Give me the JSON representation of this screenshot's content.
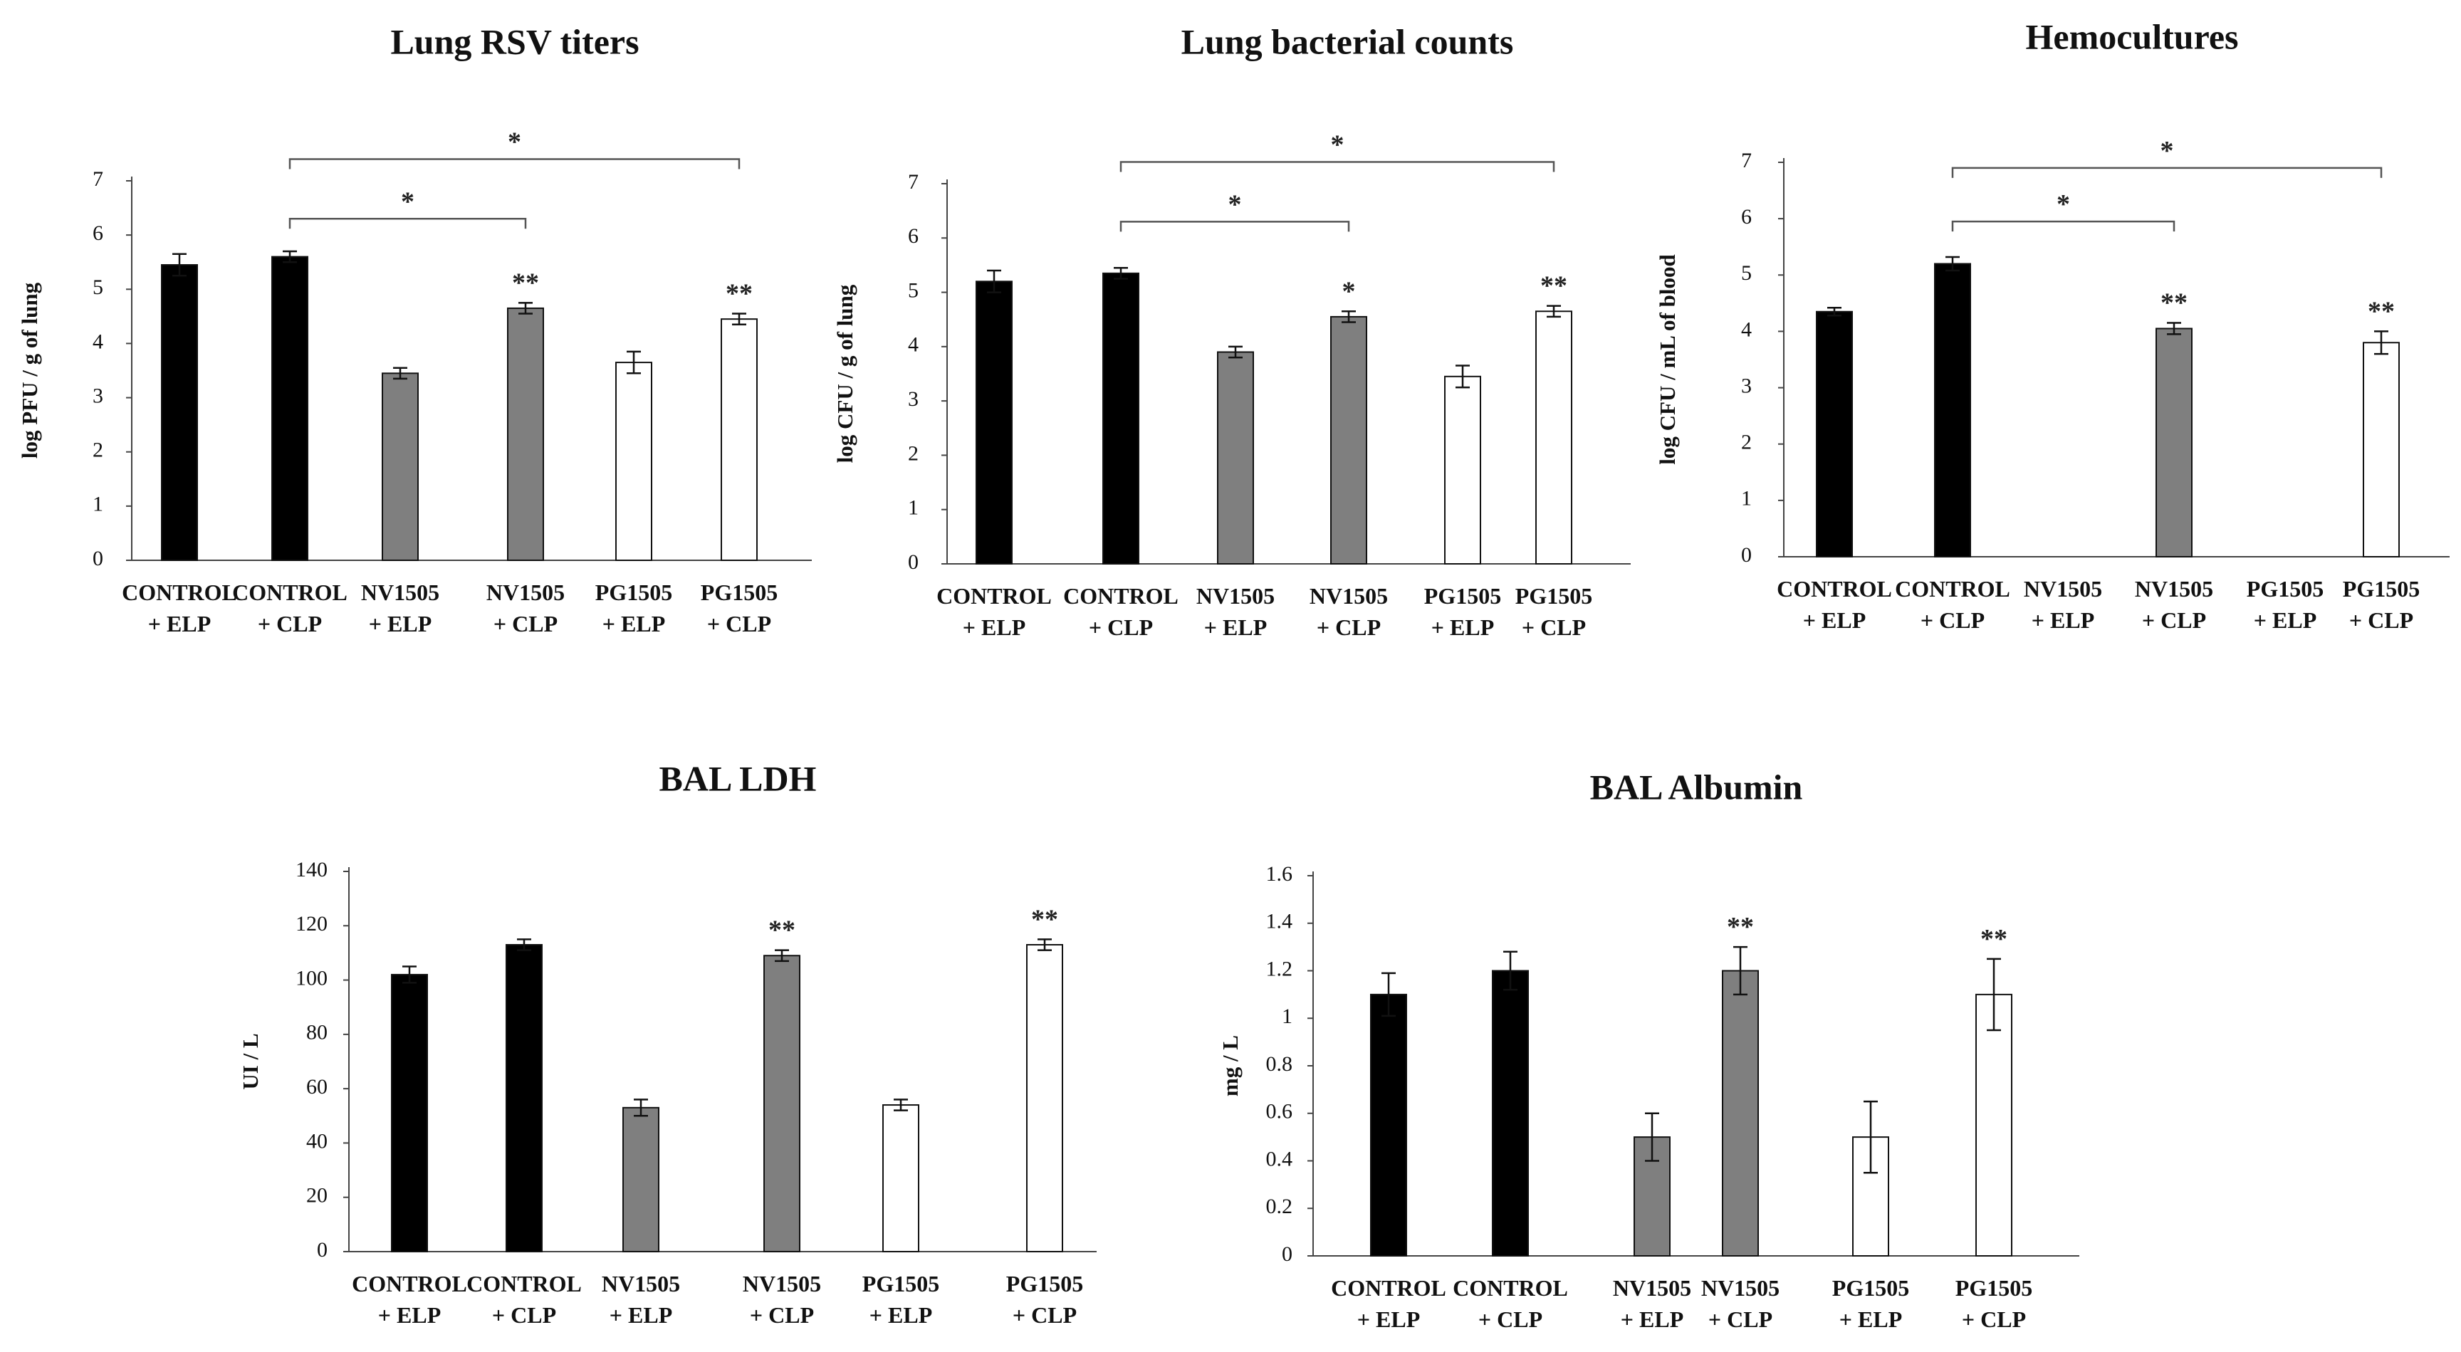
{
  "colors": {
    "black": "#000000",
    "gray": "#7f7f7f",
    "white": "#ffffff"
  },
  "chart_data": [
    {
      "type": "bar",
      "title": "Lung RSV titers",
      "ylabel": "log PFU / g of lung",
      "ylim": [
        0,
        7
      ],
      "yticks": [
        "0",
        "1",
        "2",
        "3",
        "4",
        "5",
        "6",
        "7"
      ],
      "categories": [
        [
          "CONTROL",
          "+ ELP"
        ],
        [
          "CONTROL",
          "+ CLP"
        ],
        [
          "NV1505",
          "+ ELP"
        ],
        [
          "NV1505",
          "+ CLP"
        ],
        [
          "PG1505",
          "+ ELP"
        ],
        [
          "PG1505",
          "+ CLP"
        ]
      ],
      "values": [
        5.45,
        5.6,
        3.45,
        4.65,
        3.65,
        4.45
      ],
      "errors": [
        0.2,
        0.1,
        0.1,
        0.1,
        0.2,
        0.1
      ],
      "fills": [
        "black",
        "black",
        "gray",
        "gray",
        "white",
        "white"
      ],
      "markers": [
        "",
        "",
        "",
        "**",
        "",
        "**"
      ],
      "brackets": [
        {
          "from": 1,
          "to": 3,
          "y": 6.3,
          "label": "*"
        },
        {
          "from": 1,
          "to": 5,
          "y": 7.4,
          "label": "*"
        }
      ]
    },
    {
      "type": "bar",
      "title": "Lung bacterial counts",
      "ylabel": "log CFU / g of lung",
      "ylim": [
        0,
        7
      ],
      "yticks": [
        "0",
        "1",
        "2",
        "3",
        "4",
        "5",
        "6",
        "7"
      ],
      "categories": [
        [
          "CONTROL",
          "+ ELP"
        ],
        [
          "CONTROL",
          "+ CLP"
        ],
        [
          "NV1505",
          "+ ELP"
        ],
        [
          "NV1505",
          "+ CLP"
        ],
        [
          "PG1505",
          "+ ELP"
        ],
        [
          "PG1505",
          "+ CLP"
        ]
      ],
      "values": [
        5.2,
        5.35,
        3.9,
        4.55,
        3.45,
        4.65
      ],
      "errors": [
        0.2,
        0.1,
        0.1,
        0.1,
        0.2,
        0.1
      ],
      "fills": [
        "black",
        "black",
        "gray",
        "gray",
        "white",
        "white"
      ],
      "markers": [
        "",
        "",
        "",
        "*",
        "",
        "**"
      ],
      "brackets": [
        {
          "from": 1,
          "to": 3,
          "y": 6.3,
          "label": "*"
        },
        {
          "from": 1,
          "to": 5,
          "y": 7.4,
          "label": "*"
        }
      ]
    },
    {
      "type": "bar",
      "title": "Hemocultures",
      "ylabel": "log CFU / mL of blood",
      "ylim": [
        0,
        7
      ],
      "yticks": [
        "0",
        "1",
        "2",
        "3",
        "4",
        "5",
        "6",
        "7"
      ],
      "categories": [
        [
          "CONTROL",
          "+ ELP"
        ],
        [
          "CONTROL",
          "+ CLP"
        ],
        [
          "NV1505",
          "+ ELP"
        ],
        [
          "NV1505",
          "+ CLP"
        ],
        [
          "PG1505",
          "+ ELP"
        ],
        [
          "PG1505",
          "+ CLP"
        ]
      ],
      "values": [
        4.35,
        5.2,
        0,
        4.05,
        0,
        3.8
      ],
      "errors": [
        0.07,
        0.12,
        0,
        0.1,
        0.2,
        0.2
      ],
      "fills": [
        "black",
        "black",
        "gray",
        "gray",
        "white",
        "white"
      ],
      "markers": [
        "",
        "",
        "",
        "**",
        "",
        "**"
      ],
      "brackets": [
        {
          "from": 1,
          "to": 3,
          "y": 5.95,
          "label": "*"
        },
        {
          "from": 1,
          "to": 5,
          "y": 6.9,
          "label": "*"
        }
      ]
    },
    {
      "type": "bar",
      "title": "BAL LDH",
      "ylabel": "UI / L",
      "ylim": [
        0,
        150
      ],
      "yticks": [
        "0",
        "20",
        "40",
        "60",
        "80",
        "100",
        "120",
        "140"
      ],
      "categories": [
        [
          "CONTROL",
          "+ ELP"
        ],
        [
          "CONTROL",
          "+ CLP"
        ],
        [
          "NV1505",
          "+ ELP"
        ],
        [
          "NV1505",
          "+ CLP"
        ],
        [
          "PG1505",
          "+ ELP"
        ],
        [
          "PG1505",
          "+ CLP"
        ]
      ],
      "values": [
        102,
        113,
        53,
        109,
        54,
        113
      ],
      "errors": [
        3,
        2,
        3,
        2,
        2,
        2
      ],
      "fills": [
        "black",
        "black",
        "gray",
        "gray",
        "white",
        "white"
      ],
      "markers": [
        "",
        "",
        "",
        "**",
        "",
        "**"
      ],
      "brackets": []
    },
    {
      "type": "bar",
      "title": "BAL Albumin",
      "ylabel": "mg / L",
      "ylim": [
        0,
        1.7
      ],
      "yticks": [
        "0",
        "0.2",
        "0.4",
        "0.6",
        "0.8",
        "1",
        "1.2",
        "1.4",
        "1.6"
      ],
      "categories": [
        [
          "CONTROL",
          "+ ELP"
        ],
        [
          "CONTROL",
          "+ CLP"
        ],
        [
          "NV1505",
          "+ ELP"
        ],
        [
          "NV1505",
          "+ CLP"
        ],
        [
          "PG1505",
          "+ ELP"
        ],
        [
          "PG1505",
          "+ CLP"
        ]
      ],
      "values": [
        1.1,
        1.2,
        0.5,
        1.2,
        0.5,
        1.1
      ],
      "errors": [
        0.09,
        0.08,
        0.1,
        0.1,
        0.15,
        0.15
      ],
      "fills": [
        "black",
        "black",
        "gray",
        "gray",
        "white",
        "white"
      ],
      "markers": [
        "",
        "",
        "",
        "**",
        "",
        "**"
      ],
      "brackets": []
    }
  ]
}
